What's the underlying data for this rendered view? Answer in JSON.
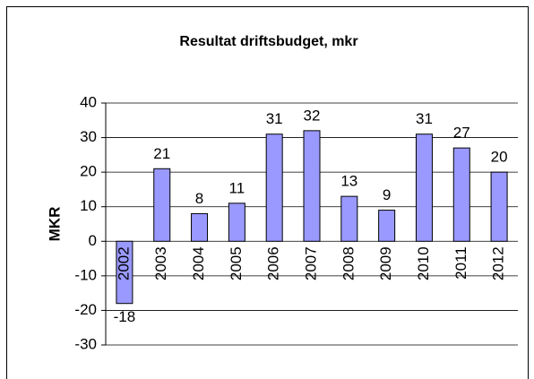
{
  "chart_data": {
    "type": "bar",
    "title": "Resultat driftsbudget, mkr",
    "y_label": "MKR",
    "categories": [
      "2002",
      "2003",
      "2004",
      "2005",
      "2006",
      "2007",
      "2008",
      "2009",
      "2010",
      "2011",
      "2012"
    ],
    "values": [
      -18,
      21,
      8,
      11,
      31,
      32,
      13,
      9,
      31,
      27,
      20
    ],
    "color": "#9999ff",
    "ylim": [
      -30,
      40
    ],
    "yticks": [
      -30,
      -20,
      -10,
      0,
      10,
      20,
      30,
      40
    ],
    "grid": true
  }
}
